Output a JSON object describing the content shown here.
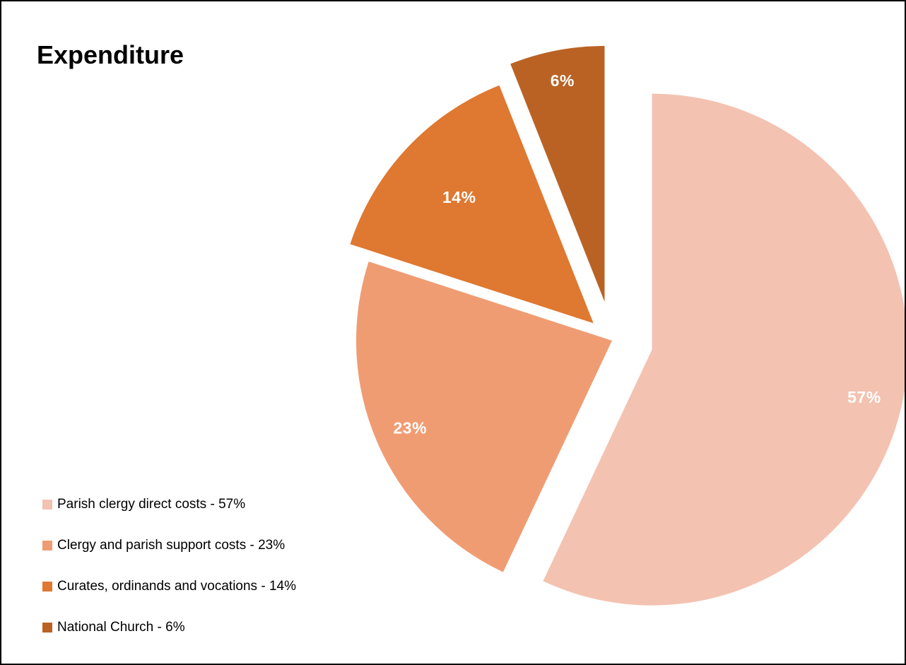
{
  "chart_data": {
    "type": "pie",
    "title": "Expenditure",
    "categories": [
      "Parish clergy direct costs - 57%",
      "Clergy and parish support costs - 23%",
      "Curates, ordinands and vocations - 14%",
      "National Church - 6%"
    ],
    "values": [
      57,
      23,
      14,
      6
    ],
    "data_labels": [
      "57%",
      "23%",
      "14%",
      "6%"
    ],
    "colors": [
      "#F4C2B1",
      "#F09C73",
      "#DF7830",
      "#BA6224"
    ],
    "exploded": true,
    "start_angle": "12 o'clock",
    "direction": "clockwise",
    "legend_position": "bottom-left"
  }
}
